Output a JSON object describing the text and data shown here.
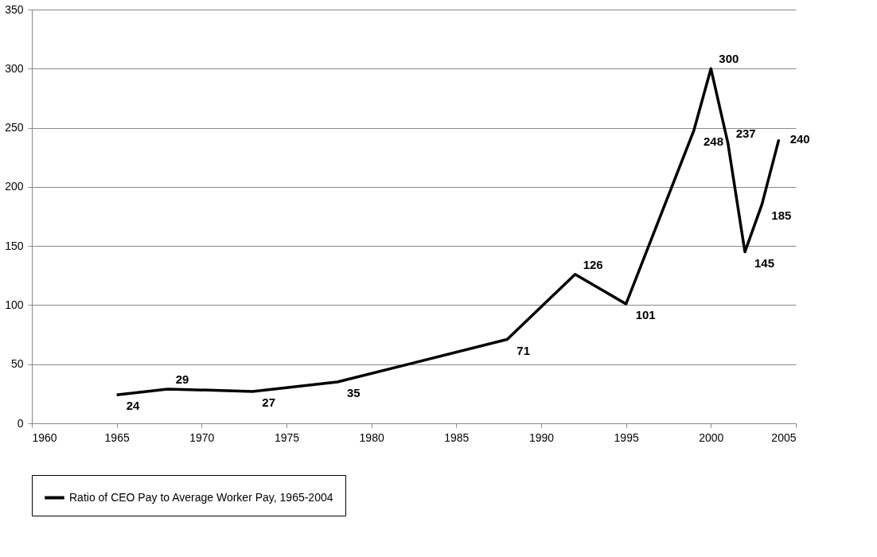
{
  "chart_data": {
    "type": "line",
    "x": [
      1965,
      1968,
      1973,
      1978,
      1988,
      1992,
      1995,
      1999,
      2000,
      2001,
      2002,
      2003,
      2004
    ],
    "series": [
      {
        "name": "Ratio of CEO Pay to Average Worker Pay, 1965-2004",
        "color": "#000000",
        "values": [
          24,
          29,
          27,
          35,
          71,
          126,
          101,
          248,
          300,
          237,
          145,
          185,
          240
        ]
      }
    ],
    "xlim": [
      1960,
      2005
    ],
    "xticks": [
      1960,
      1965,
      1970,
      1975,
      1980,
      1985,
      1990,
      1995,
      2000,
      2005
    ],
    "ylim": [
      0,
      350
    ],
    "yticks": [
      0,
      50,
      100,
      150,
      200,
      250,
      300,
      350
    ],
    "grid": "y",
    "legend": "bottom",
    "data_labels": true,
    "marker": "none",
    "line_style": "solid"
  }
}
